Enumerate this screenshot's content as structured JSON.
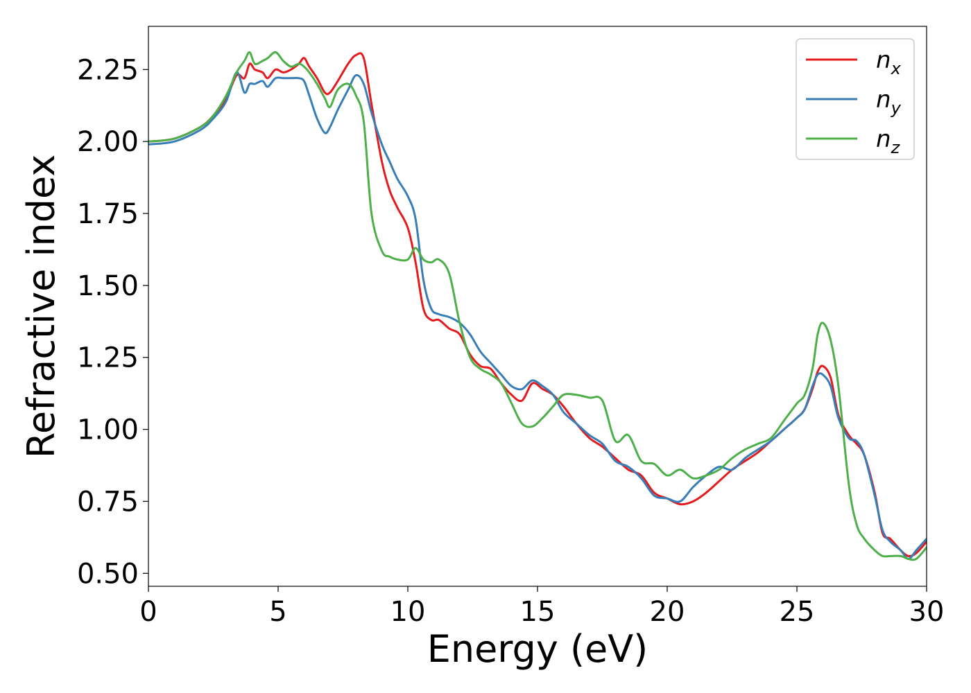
{
  "chart_data": {
    "type": "line",
    "title": "",
    "xlabel": "Energy (eV)",
    "ylabel": "Refractive index",
    "xlim": [
      0,
      30
    ],
    "ylim": [
      0.455,
      2.4
    ],
    "xticks": [
      0,
      5,
      10,
      15,
      20,
      25,
      30
    ],
    "xtick_labels": [
      "0",
      "5",
      "10",
      "15",
      "20",
      "25",
      "30"
    ],
    "yticks": [
      0.5,
      0.75,
      1.0,
      1.25,
      1.5,
      1.75,
      2.0,
      2.25
    ],
    "ytick_labels": [
      "0.50",
      "0.75",
      "1.00",
      "1.25",
      "1.50",
      "1.75",
      "2.00",
      "2.25"
    ],
    "grid": false,
    "legend_position": "top-right",
    "series": [
      {
        "name": "n",
        "subscript": "x",
        "color": "#e41a1c",
        "x": [
          0,
          1,
          2,
          2.5,
          3,
          3.4,
          3.7,
          3.9,
          4.1,
          4.4,
          4.6,
          4.9,
          5.2,
          5.5,
          5.8,
          6.0,
          6.2,
          6.5,
          6.8,
          7.0,
          7.3,
          7.7,
          8.0,
          8.3,
          8.6,
          9.0,
          9.3,
          9.6,
          10.0,
          10.3,
          10.6,
          10.9,
          11.2,
          11.6,
          12.0,
          12.4,
          12.8,
          13.2,
          13.6,
          14.0,
          14.4,
          14.8,
          15.2,
          15.6,
          16.0,
          16.5,
          17.0,
          17.5,
          18.0,
          18.5,
          19.0,
          19.5,
          20.0,
          20.5,
          21.0,
          21.5,
          22.0,
          22.5,
          23.0,
          23.5,
          24.0,
          24.5,
          25.0,
          25.3,
          25.6,
          25.8,
          26.0,
          26.3,
          26.6,
          27.0,
          27.3,
          27.6,
          28.0,
          28.3,
          28.6,
          29.0,
          29.3,
          29.6,
          30.0
        ],
        "y": [
          2.0,
          2.01,
          2.05,
          2.09,
          2.15,
          2.23,
          2.22,
          2.27,
          2.25,
          2.24,
          2.22,
          2.25,
          2.24,
          2.25,
          2.27,
          2.29,
          2.26,
          2.22,
          2.17,
          2.17,
          2.21,
          2.27,
          2.3,
          2.29,
          2.13,
          1.93,
          1.83,
          1.77,
          1.7,
          1.58,
          1.42,
          1.38,
          1.38,
          1.35,
          1.33,
          1.26,
          1.22,
          1.21,
          1.16,
          1.12,
          1.1,
          1.16,
          1.14,
          1.12,
          1.08,
          1.02,
          0.97,
          0.94,
          0.9,
          0.86,
          0.84,
          0.78,
          0.76,
          0.74,
          0.75,
          0.78,
          0.82,
          0.86,
          0.89,
          0.92,
          0.96,
          1.0,
          1.04,
          1.07,
          1.14,
          1.2,
          1.22,
          1.18,
          1.05,
          0.98,
          0.95,
          0.91,
          0.78,
          0.64,
          0.62,
          0.58,
          0.56,
          0.57,
          0.61
        ]
      },
      {
        "name": "n",
        "subscript": "y",
        "color": "#377eb8",
        "x": [
          0,
          1,
          2,
          2.5,
          3,
          3.4,
          3.7,
          3.9,
          4.1,
          4.4,
          4.6,
          4.9,
          5.2,
          5.5,
          5.8,
          6.0,
          6.2,
          6.5,
          6.8,
          7.0,
          7.3,
          7.7,
          8.0,
          8.3,
          8.6,
          9.0,
          9.3,
          9.6,
          10.0,
          10.3,
          10.6,
          10.9,
          11.2,
          11.6,
          12.0,
          12.4,
          12.8,
          13.2,
          13.6,
          14.0,
          14.4,
          14.8,
          15.2,
          15.6,
          16.0,
          16.5,
          17.0,
          17.5,
          18.0,
          18.5,
          19.0,
          19.5,
          20.0,
          20.5,
          21.0,
          21.5,
          22.0,
          22.5,
          23.0,
          23.5,
          24.0,
          24.5,
          25.0,
          25.3,
          25.6,
          25.8,
          26.0,
          26.3,
          26.6,
          27.0,
          27.3,
          27.6,
          28.0,
          28.3,
          28.6,
          29.0,
          29.3,
          29.6,
          30.0
        ],
        "y": [
          1.99,
          2.0,
          2.04,
          2.08,
          2.14,
          2.24,
          2.17,
          2.2,
          2.2,
          2.21,
          2.19,
          2.22,
          2.22,
          2.22,
          2.22,
          2.21,
          2.16,
          2.08,
          2.03,
          2.05,
          2.11,
          2.18,
          2.23,
          2.2,
          2.1,
          1.99,
          1.93,
          1.87,
          1.81,
          1.73,
          1.52,
          1.42,
          1.4,
          1.39,
          1.37,
          1.33,
          1.27,
          1.23,
          1.19,
          1.15,
          1.14,
          1.17,
          1.15,
          1.12,
          1.06,
          1.02,
          0.98,
          0.95,
          0.89,
          0.87,
          0.83,
          0.77,
          0.76,
          0.75,
          0.8,
          0.84,
          0.87,
          0.86,
          0.9,
          0.93,
          0.96,
          1.0,
          1.04,
          1.07,
          1.15,
          1.19,
          1.19,
          1.15,
          1.04,
          0.97,
          0.96,
          0.91,
          0.77,
          0.65,
          0.61,
          0.58,
          0.55,
          0.58,
          0.62
        ]
      },
      {
        "name": "n",
        "subscript": "z",
        "color": "#4daf4a",
        "x": [
          0,
          1,
          2,
          2.5,
          3,
          3.4,
          3.7,
          3.9,
          4.1,
          4.4,
          4.6,
          4.9,
          5.2,
          5.5,
          5.8,
          6.0,
          6.2,
          6.5,
          6.8,
          7.0,
          7.3,
          7.7,
          8.0,
          8.3,
          8.6,
          9.0,
          9.3,
          9.6,
          10.0,
          10.3,
          10.6,
          10.9,
          11.2,
          11.6,
          12.0,
          12.4,
          12.8,
          13.2,
          13.6,
          14.0,
          14.4,
          14.8,
          15.2,
          15.6,
          16.0,
          16.5,
          17.0,
          17.5,
          18.0,
          18.5,
          19.0,
          19.5,
          20.0,
          20.5,
          21.0,
          21.5,
          22.0,
          22.5,
          23.0,
          23.5,
          24.0,
          24.5,
          25.0,
          25.3,
          25.6,
          25.8,
          26.0,
          26.3,
          26.6,
          27.0,
          27.3,
          27.6,
          28.0,
          28.3,
          28.6,
          29.0,
          29.3,
          29.6,
          30.0
        ],
        "y": [
          2.0,
          2.01,
          2.05,
          2.09,
          2.16,
          2.24,
          2.28,
          2.31,
          2.27,
          2.28,
          2.29,
          2.31,
          2.28,
          2.26,
          2.27,
          2.26,
          2.24,
          2.2,
          2.15,
          2.12,
          2.18,
          2.2,
          2.16,
          2.07,
          1.75,
          1.62,
          1.6,
          1.59,
          1.59,
          1.63,
          1.59,
          1.58,
          1.59,
          1.54,
          1.37,
          1.25,
          1.21,
          1.19,
          1.16,
          1.09,
          1.02,
          1.01,
          1.04,
          1.08,
          1.12,
          1.12,
          1.11,
          1.1,
          0.96,
          0.98,
          0.89,
          0.88,
          0.84,
          0.86,
          0.83,
          0.84,
          0.86,
          0.9,
          0.93,
          0.95,
          0.97,
          1.03,
          1.09,
          1.12,
          1.21,
          1.33,
          1.37,
          1.31,
          1.15,
          0.81,
          0.67,
          0.62,
          0.58,
          0.56,
          0.56,
          0.56,
          0.55,
          0.55,
          0.59
        ]
      }
    ]
  }
}
